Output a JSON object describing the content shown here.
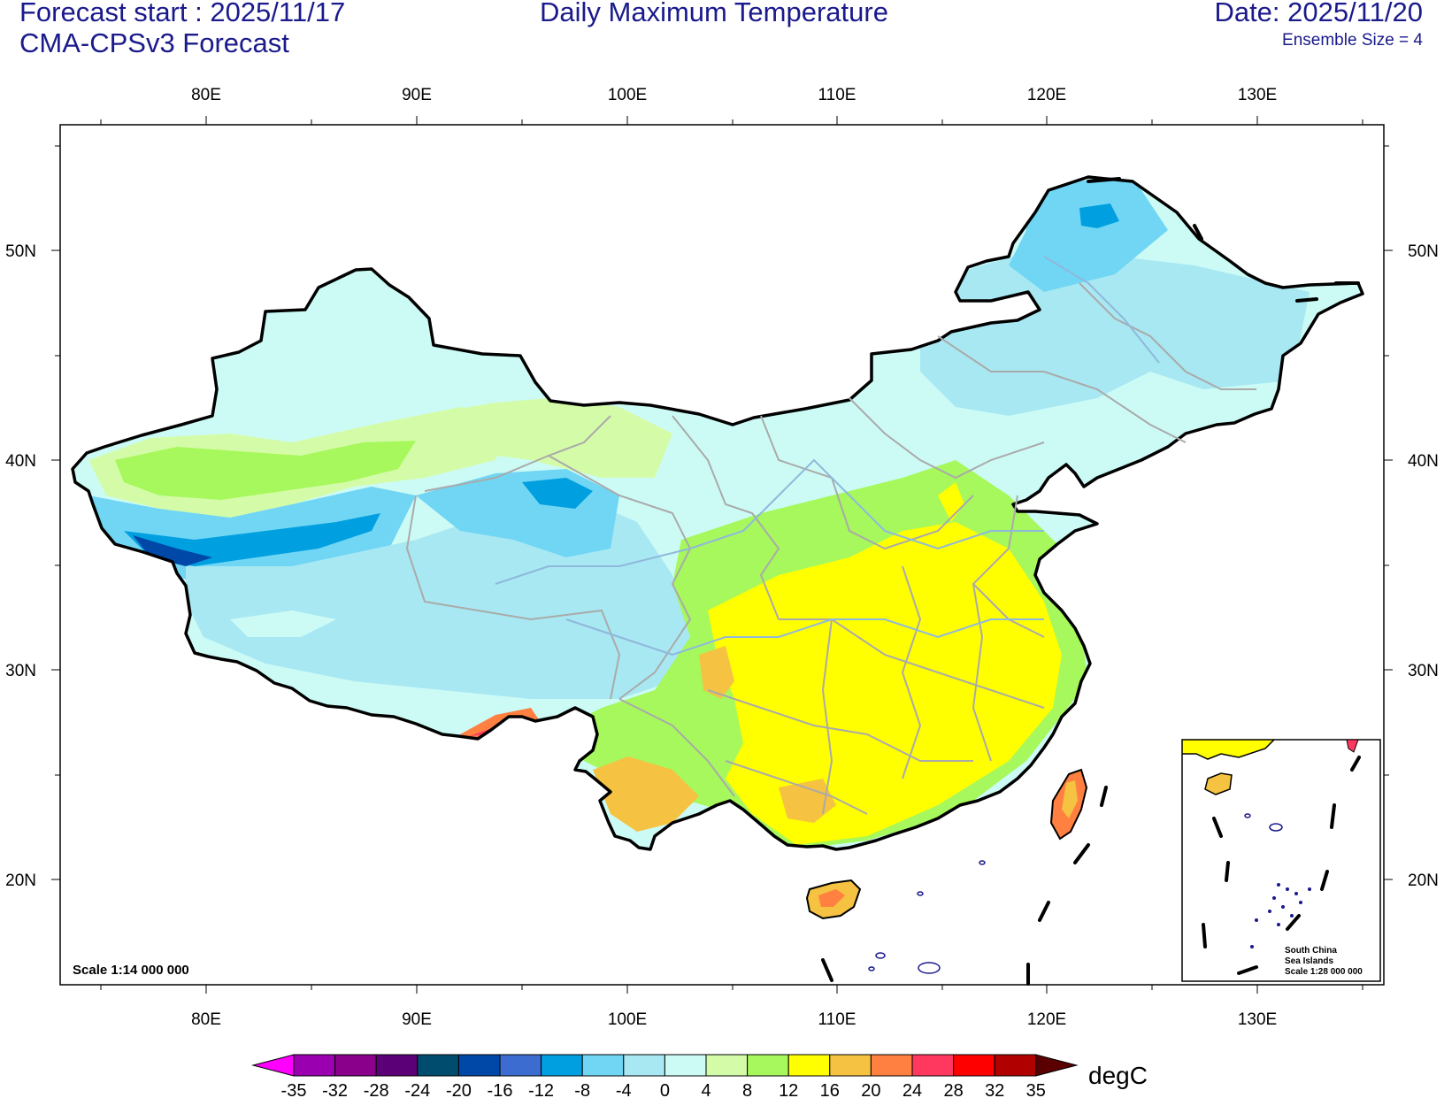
{
  "header": {
    "forecast_start": "Forecast start : 2025/11/17",
    "model": "CMA-CPSv3 Forecast",
    "title": "Daily Maximum Temperature",
    "date": "Date: 2025/11/20",
    "ensemble": "Ensemble Size = 4"
  },
  "map": {
    "lon_labels": [
      "80E",
      "90E",
      "100E",
      "110E",
      "120E",
      "130E"
    ],
    "lat_labels": [
      "50N",
      "40N",
      "30N",
      "20N"
    ],
    "scale_text": "Scale 1:14 000 000",
    "inset_title_1": "South China",
    "inset_title_2": "Sea Islands",
    "inset_scale": "Scale 1:28 000 000"
  },
  "colorbar": {
    "unit": "degC",
    "labels": [
      "-35",
      "-32",
      "-28",
      "-24",
      "-20",
      "-16",
      "-12",
      "-8",
      "-4",
      "0",
      "4",
      "8",
      "12",
      "16",
      "20",
      "24",
      "28",
      "32",
      "35"
    ],
    "colors": [
      "#9b00b0",
      "#8a008a",
      "#5c0078",
      "#004c6e",
      "#0048a8",
      "#3c6cd0",
      "#00a0e0",
      "#70d6f4",
      "#a8e8f2",
      "#ccfbf6",
      "#d4fca8",
      "#a6f85c",
      "#ffff00",
      "#f5c242",
      "#ff8040",
      "#ff3860",
      "#ff0000",
      "#b00000"
    ],
    "left_arrow_color": "#ff00ff",
    "right_arrow_color": "#5a0000"
  }
}
